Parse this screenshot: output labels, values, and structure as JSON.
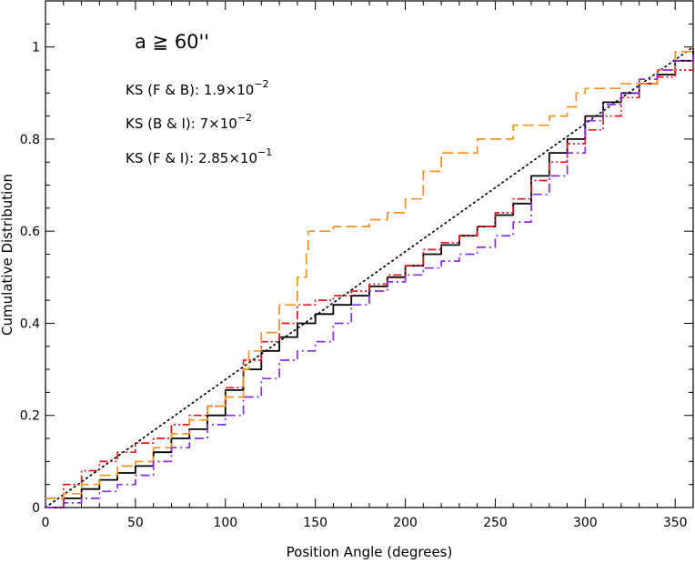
{
  "chart_data": {
    "type": "line",
    "title": "",
    "xlabel": "Position Angle (degrees)",
    "ylabel": "Cumulative Distribution",
    "xlim": [
      0,
      360
    ],
    "ylim": [
      0,
      1.1
    ],
    "xticks": [
      0,
      50,
      100,
      150,
      200,
      250,
      300,
      350
    ],
    "xtick_labels": [
      "0",
      "50",
      "100",
      "150",
      "200",
      "250",
      "300",
      "350"
    ],
    "yticks": [
      0,
      0.2,
      0.4,
      0.6,
      0.8,
      1
    ],
    "ytick_labels": [
      "0",
      "0.2",
      "0.4",
      "0.6",
      "0.8",
      "1"
    ],
    "grid": false,
    "annotations": [
      {
        "id": "cut",
        "text": "a ≧ 60''"
      },
      {
        "id": "ks-fb",
        "prefix": "KS (F & B): ",
        "mantissa": "1.9×10",
        "exponent": "−2"
      },
      {
        "id": "ks-bi",
        "prefix": "KS (B & I): ",
        "mantissa": "7×10",
        "exponent": "−2"
      },
      {
        "id": "ks-fi",
        "prefix": "KS (F & I): ",
        "mantissa": "2.85×10",
        "exponent": "−1"
      }
    ],
    "series": [
      {
        "id": "uniform",
        "color": "#000000",
        "style": "dotted",
        "x": [
          0,
          360
        ],
        "y": [
          0,
          1
        ]
      },
      {
        "id": "black-solid",
        "color": "#000000",
        "style": "solid",
        "x": [
          0,
          10,
          20,
          30,
          40,
          50,
          60,
          70,
          80,
          90,
          100,
          110,
          120,
          130,
          140,
          150,
          160,
          170,
          180,
          190,
          200,
          210,
          220,
          230,
          240,
          250,
          260,
          270,
          280,
          290,
          300,
          310,
          320,
          330,
          340,
          350,
          360
        ],
        "y": [
          0,
          0.02,
          0.04,
          0.06,
          0.075,
          0.09,
          0.12,
          0.15,
          0.17,
          0.2,
          0.255,
          0.3,
          0.34,
          0.37,
          0.4,
          0.42,
          0.44,
          0.46,
          0.48,
          0.5,
          0.525,
          0.55,
          0.57,
          0.59,
          0.61,
          0.635,
          0.66,
          0.72,
          0.77,
          0.8,
          0.85,
          0.88,
          0.9,
          0.92,
          0.94,
          0.97,
          1
        ]
      },
      {
        "id": "red-dashdotdot",
        "color": "#e8141c",
        "style": "dash-dot-dot",
        "x": [
          0,
          10,
          20,
          30,
          40,
          50,
          60,
          70,
          80,
          90,
          100,
          110,
          120,
          130,
          140,
          150,
          160,
          170,
          180,
          190,
          200,
          210,
          220,
          230,
          240,
          250,
          260,
          270,
          280,
          290,
          300,
          310,
          320,
          330,
          340,
          350,
          360
        ],
        "y": [
          0,
          0.05,
          0.08,
          0.1,
          0.12,
          0.14,
          0.15,
          0.18,
          0.2,
          0.22,
          0.26,
          0.32,
          0.36,
          0.4,
          0.44,
          0.45,
          0.46,
          0.47,
          0.485,
          0.505,
          0.525,
          0.56,
          0.575,
          0.59,
          0.61,
          0.64,
          0.67,
          0.71,
          0.75,
          0.79,
          0.82,
          0.85,
          0.89,
          0.92,
          0.935,
          0.95,
          0.98
        ]
      },
      {
        "id": "orange-dashed",
        "color": "#f7941d",
        "style": "dashed",
        "x": [
          0,
          10,
          20,
          30,
          40,
          50,
          60,
          70,
          80,
          90,
          100,
          110,
          113,
          120,
          130,
          140,
          145,
          146,
          160,
          180,
          190,
          200,
          210,
          220,
          240,
          260,
          280,
          290,
          295,
          300,
          320,
          340,
          350,
          360
        ],
        "y": [
          0.02,
          0.03,
          0.05,
          0.07,
          0.09,
          0.1,
          0.13,
          0.16,
          0.19,
          0.22,
          0.24,
          0.3,
          0.34,
          0.38,
          0.44,
          0.5,
          0.56,
          0.6,
          0.61,
          0.625,
          0.64,
          0.67,
          0.73,
          0.77,
          0.8,
          0.83,
          0.85,
          0.87,
          0.9,
          0.91,
          0.92,
          0.95,
          0.99,
          1
        ]
      },
      {
        "id": "purple-dashdot",
        "color": "#8b2be2",
        "style": "dash-dot",
        "x": [
          0,
          10,
          20,
          30,
          40,
          50,
          60,
          70,
          80,
          90,
          100,
          110,
          120,
          130,
          140,
          150,
          160,
          170,
          180,
          190,
          200,
          210,
          220,
          230,
          240,
          250,
          260,
          270,
          280,
          290,
          300,
          310,
          320,
          330,
          340,
          350,
          360
        ],
        "y": [
          0,
          0.01,
          0.02,
          0.035,
          0.05,
          0.07,
          0.1,
          0.13,
          0.15,
          0.18,
          0.2,
          0.24,
          0.28,
          0.32,
          0.34,
          0.36,
          0.4,
          0.44,
          0.47,
          0.49,
          0.505,
          0.52,
          0.535,
          0.55,
          0.565,
          0.59,
          0.62,
          0.68,
          0.72,
          0.77,
          0.84,
          0.875,
          0.9,
          0.93,
          0.95,
          0.97,
          1
        ]
      }
    ]
  }
}
